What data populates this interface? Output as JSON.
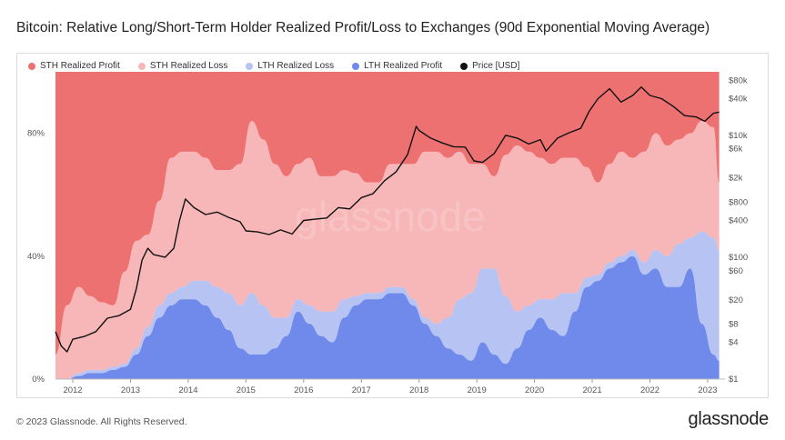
{
  "title": "Bitcoin: Relative Long/Short-Term Holder Realized Profit/Loss to Exchanges (90d Exponential Moving Average)",
  "footer": "© 2023 Glassnode. All Rights Reserved.",
  "brand": "glassnode",
  "watermark": "glassnode",
  "chart_data": {
    "type": "area",
    "stacking": "percent",
    "legend": "top-left",
    "grid": false,
    "x_ticks": [
      "2012",
      "2013",
      "2014",
      "2015",
      "2016",
      "2017",
      "2018",
      "2019",
      "2020",
      "2021",
      "2022",
      "2023"
    ],
    "xlim": [
      2011.7,
      2023.3
    ],
    "y_left_ticks": [
      "0%",
      "40%",
      "80%"
    ],
    "ylim_left": [
      0,
      100
    ],
    "y_right_ticks": [
      "$1",
      "$4",
      "$8",
      "$20",
      "$60",
      "$100",
      "$400",
      "$800",
      "$2k",
      "$6k",
      "$10k",
      "$40k",
      "$80k"
    ],
    "y_right_values": [
      1,
      4,
      8,
      20,
      60,
      100,
      400,
      800,
      2000,
      6000,
      10000,
      40000,
      80000
    ],
    "y_right_scale": "log",
    "colors": {
      "sth_profit": "#ee7171",
      "sth_loss": "#f7b6b8",
      "lth_loss": "#b6c3f3",
      "lth_profit": "#6f8aea",
      "price": "#111111"
    },
    "x": [
      2011.7,
      2011.9,
      2012.1,
      2012.3,
      2012.5,
      2012.7,
      2012.9,
      2013.1,
      2013.3,
      2013.5,
      2013.7,
      2013.9,
      2014.1,
      2014.3,
      2014.5,
      2014.7,
      2014.9,
      2015.1,
      2015.3,
      2015.5,
      2015.7,
      2015.9,
      2016.1,
      2016.3,
      2016.5,
      2016.7,
      2016.9,
      2017.1,
      2017.3,
      2017.5,
      2017.7,
      2017.9,
      2018.1,
      2018.3,
      2018.5,
      2018.7,
      2018.9,
      2019.1,
      2019.3,
      2019.5,
      2019.7,
      2019.9,
      2020.1,
      2020.3,
      2020.5,
      2020.7,
      2020.9,
      2021.1,
      2021.3,
      2021.5,
      2021.7,
      2021.9,
      2022.1,
      2022.3,
      2022.5,
      2022.7,
      2022.9,
      2023.1,
      2023.2
    ],
    "series": [
      {
        "name": "LTH Realized Profit",
        "values": [
          0,
          0,
          1,
          2,
          2,
          3,
          4,
          8,
          14,
          20,
          24,
          26,
          26,
          24,
          20,
          16,
          10,
          8,
          8,
          10,
          14,
          22,
          18,
          14,
          12,
          20,
          24,
          26,
          26,
          28,
          28,
          24,
          18,
          14,
          10,
          8,
          6,
          12,
          8,
          5,
          10,
          16,
          20,
          16,
          14,
          22,
          30,
          32,
          36,
          38,
          40,
          34,
          36,
          30,
          30,
          36,
          18,
          8,
          6
        ],
        "box": null
      },
      {
        "name": "LTH Realized Loss",
        "values": [
          0,
          0,
          1,
          1,
          1,
          1,
          1,
          2,
          3,
          4,
          4,
          4,
          6,
          8,
          10,
          12,
          14,
          20,
          16,
          10,
          6,
          4,
          6,
          8,
          10,
          6,
          3,
          2,
          2,
          2,
          2,
          2,
          2,
          4,
          10,
          18,
          22,
          24,
          28,
          22,
          12,
          8,
          6,
          10,
          14,
          6,
          3,
          2,
          2,
          2,
          2,
          4,
          6,
          10,
          14,
          10,
          30,
          38,
          36
        ],
        "box": null
      },
      {
        "name": "STH Realized Loss",
        "values": [
          8,
          24,
          28,
          24,
          22,
          20,
          30,
          35,
          30,
          34,
          44,
          44,
          42,
          40,
          38,
          40,
          46,
          56,
          54,
          50,
          46,
          44,
          48,
          44,
          44,
          42,
          40,
          36,
          36,
          40,
          40,
          44,
          54,
          56,
          52,
          48,
          42,
          34,
          30,
          46,
          54,
          50,
          46,
          44,
          44,
          44,
          36,
          30,
          32,
          34,
          30,
          36,
          38,
          36,
          34,
          34,
          36,
          36,
          22
        ],
        "box": null
      },
      {
        "name": "STH Realized Profit",
        "values": [
          92,
          76,
          70,
          73,
          75,
          76,
          65,
          55,
          53,
          42,
          28,
          26,
          26,
          28,
          32,
          32,
          30,
          16,
          22,
          30,
          34,
          30,
          28,
          34,
          34,
          32,
          33,
          36,
          36,
          30,
          30,
          30,
          26,
          26,
          28,
          26,
          30,
          30,
          34,
          27,
          24,
          26,
          28,
          30,
          28,
          28,
          31,
          36,
          30,
          26,
          28,
          26,
          20,
          24,
          22,
          20,
          16,
          18,
          36
        ]
      }
    ],
    "price": {
      "name": "Price [USD]",
      "x": [
        2011.7,
        2011.8,
        2011.9,
        2012.0,
        2012.2,
        2012.4,
        2012.6,
        2012.8,
        2013.0,
        2013.1,
        2013.2,
        2013.3,
        2013.4,
        2013.6,
        2013.75,
        2013.85,
        2013.95,
        2014.1,
        2014.3,
        2014.5,
        2014.7,
        2014.9,
        2015.0,
        2015.2,
        2015.4,
        2015.6,
        2015.8,
        2016.0,
        2016.2,
        2016.4,
        2016.6,
        2016.8,
        2017.0,
        2017.2,
        2017.4,
        2017.6,
        2017.8,
        2017.95,
        2018.0,
        2018.2,
        2018.4,
        2018.6,
        2018.8,
        2018.95,
        2019.1,
        2019.3,
        2019.5,
        2019.7,
        2019.9,
        2020.1,
        2020.2,
        2020.4,
        2020.6,
        2020.8,
        2020.95,
        2021.1,
        2021.3,
        2021.5,
        2021.7,
        2021.85,
        2022.0,
        2022.2,
        2022.4,
        2022.6,
        2022.8,
        2022.95,
        2023.1,
        2023.2
      ],
      "values": [
        6,
        3.5,
        2.8,
        4.5,
        5,
        6,
        10,
        11,
        14,
        30,
        90,
        140,
        110,
        100,
        140,
        400,
        900,
        650,
        500,
        550,
        450,
        380,
        270,
        260,
        235,
        280,
        240,
        400,
        420,
        440,
        650,
        620,
        950,
        1100,
        1800,
        2500,
        4800,
        14000,
        12000,
        9000,
        7500,
        6500,
        6400,
        3800,
        3600,
        5000,
        10000,
        9000,
        7200,
        8500,
        5500,
        9000,
        11000,
        13000,
        25000,
        40000,
        58000,
        35000,
        45000,
        62000,
        45000,
        40000,
        30000,
        21000,
        20000,
        17000,
        23000,
        24000
      ]
    }
  }
}
